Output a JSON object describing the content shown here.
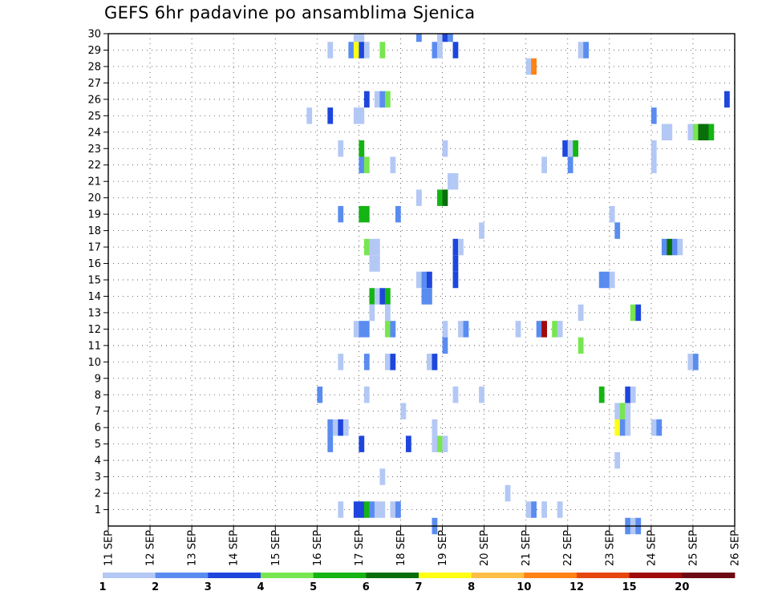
{
  "chart_data": {
    "type": "heatmap",
    "title": "GEFS 6hr padavine po ansamblima Sjenica",
    "xlabel": "",
    "ylabel": "",
    "x_tick_labels": [
      "11 SEP",
      "12 SEP",
      "13 SEP",
      "14 SEP",
      "15 SEP",
      "16 SEP",
      "17 SEP",
      "18 SEP",
      "19 SEP",
      "20 SEP",
      "21 SEP",
      "22 SEP",
      "23 SEP",
      "24 SEP",
      "25 SEP",
      "26 SEP"
    ],
    "y_tick_labels": [
      "1",
      "2",
      "3",
      "4",
      "5",
      "6",
      "7",
      "8",
      "9",
      "10",
      "11",
      "12",
      "13",
      "14",
      "15",
      "16",
      "17",
      "18",
      "19",
      "20",
      "21",
      "22",
      "23",
      "24",
      "25",
      "26",
      "27",
      "28",
      "29",
      "30"
    ],
    "xlim": [
      "11 SEP 00h",
      "26 SEP 00h"
    ],
    "ylim": [
      0,
      30
    ],
    "grid": true,
    "colorbar": {
      "placement": "bottom",
      "levels": [
        "1",
        "2",
        "3",
        "4",
        "5",
        "6",
        "7",
        "8",
        "10",
        "12",
        "15",
        "20"
      ],
      "colors": [
        "#b4c8f5",
        "#5a8cf0",
        "#1e46dc",
        "#78e650",
        "#14b414",
        "#0a6e0a",
        "#ffff14",
        "#ffbe46",
        "#ff8214",
        "#e6460f",
        "#a00a0a",
        "#6e0a14"
      ]
    },
    "cells": [
      {
        "member": 30,
        "t": 47,
        "c": 0
      },
      {
        "member": 30,
        "t": 48,
        "c": 0
      },
      {
        "member": 30,
        "t": 59,
        "c": 1
      },
      {
        "member": 30,
        "t": 63,
        "c": 0
      },
      {
        "member": 30,
        "t": 64,
        "c": 2
      },
      {
        "member": 30,
        "t": 65,
        "c": 1
      },
      {
        "member": 29,
        "t": 42,
        "c": 0
      },
      {
        "member": 29,
        "t": 46,
        "c": 1
      },
      {
        "member": 29,
        "t": 47,
        "c": 6
      },
      {
        "member": 29,
        "t": 48,
        "c": 2
      },
      {
        "member": 29,
        "t": 49,
        "c": 0
      },
      {
        "member": 29,
        "t": 52,
        "c": 3
      },
      {
        "member": 29,
        "t": 62,
        "c": 1
      },
      {
        "member": 29,
        "t": 63,
        "c": 0
      },
      {
        "member": 29,
        "t": 66,
        "c": 2
      },
      {
        "member": 29,
        "t": 90,
        "c": 0
      },
      {
        "member": 29,
        "t": 91,
        "c": 1
      },
      {
        "member": 28,
        "t": 80,
        "c": 0
      },
      {
        "member": 28,
        "t": 81,
        "c": 8
      },
      {
        "member": 26,
        "t": 49,
        "c": 2
      },
      {
        "member": 26,
        "t": 51,
        "c": 0
      },
      {
        "member": 26,
        "t": 52,
        "c": 1
      },
      {
        "member": 26,
        "t": 53,
        "c": 3
      },
      {
        "member": 26,
        "t": 118,
        "c": 2
      },
      {
        "member": 25,
        "t": 38,
        "c": 0
      },
      {
        "member": 25,
        "t": 42,
        "c": 2
      },
      {
        "member": 25,
        "t": 47,
        "c": 0
      },
      {
        "member": 25,
        "t": 48,
        "c": 0
      },
      {
        "member": 25,
        "t": 104,
        "c": 1
      },
      {
        "member": 24,
        "t": 106,
        "c": 0
      },
      {
        "member": 24,
        "t": 107,
        "c": 0
      },
      {
        "member": 24,
        "t": 111,
        "c": 0
      },
      {
        "member": 24,
        "t": 112,
        "c": 3
      },
      {
        "member": 24,
        "t": 113,
        "c": 5
      },
      {
        "member": 24,
        "t": 114,
        "c": 5
      },
      {
        "member": 24,
        "t": 115,
        "c": 4
      },
      {
        "member": 23,
        "t": 44,
        "c": 0
      },
      {
        "member": 23,
        "t": 48,
        "c": 4
      },
      {
        "member": 23,
        "t": 64,
        "c": 0
      },
      {
        "member": 23,
        "t": 87,
        "c": 2
      },
      {
        "member": 23,
        "t": 88,
        "c": 0
      },
      {
        "member": 23,
        "t": 89,
        "c": 4
      },
      {
        "member": 23,
        "t": 104,
        "c": 0
      },
      {
        "member": 22,
        "t": 48,
        "c": 1
      },
      {
        "member": 22,
        "t": 49,
        "c": 3
      },
      {
        "member": 22,
        "t": 54,
        "c": 0
      },
      {
        "member": 22,
        "t": 83,
        "c": 0
      },
      {
        "member": 22,
        "t": 88,
        "c": 1
      },
      {
        "member": 22,
        "t": 104,
        "c": 0
      },
      {
        "member": 21,
        "t": 65,
        "c": 0
      },
      {
        "member": 21,
        "t": 66,
        "c": 0
      },
      {
        "member": 20,
        "t": 59,
        "c": 0
      },
      {
        "member": 20,
        "t": 63,
        "c": 4
      },
      {
        "member": 20,
        "t": 64,
        "c": 5
      },
      {
        "member": 19,
        "t": 44,
        "c": 1
      },
      {
        "member": 19,
        "t": 48,
        "c": 4
      },
      {
        "member": 19,
        "t": 49,
        "c": 4
      },
      {
        "member": 19,
        "t": 55,
        "c": 1
      },
      {
        "member": 19,
        "t": 96,
        "c": 0
      },
      {
        "member": 18,
        "t": 71,
        "c": 0
      },
      {
        "member": 18,
        "t": 97,
        "c": 1
      },
      {
        "member": 17,
        "t": 49,
        "c": 3
      },
      {
        "member": 17,
        "t": 50,
        "c": 0
      },
      {
        "member": 17,
        "t": 51,
        "c": 0
      },
      {
        "member": 17,
        "t": 66,
        "c": 2
      },
      {
        "member": 17,
        "t": 67,
        "c": 0
      },
      {
        "member": 17,
        "t": 106,
        "c": 1
      },
      {
        "member": 17,
        "t": 107,
        "c": 5
      },
      {
        "member": 17,
        "t": 108,
        "c": 1
      },
      {
        "member": 17,
        "t": 109,
        "c": 0
      },
      {
        "member": 16,
        "t": 50,
        "c": 0
      },
      {
        "member": 16,
        "t": 51,
        "c": 0
      },
      {
        "member": 16,
        "t": 66,
        "c": 2
      },
      {
        "member": 15,
        "t": 59,
        "c": 0
      },
      {
        "member": 15,
        "t": 60,
        "c": 1
      },
      {
        "member": 15,
        "t": 61,
        "c": 2
      },
      {
        "member": 15,
        "t": 66,
        "c": 2
      },
      {
        "member": 15,
        "t": 94,
        "c": 1
      },
      {
        "member": 15,
        "t": 95,
        "c": 1
      },
      {
        "member": 15,
        "t": 96,
        "c": 0
      },
      {
        "member": 14,
        "t": 50,
        "c": 4
      },
      {
        "member": 14,
        "t": 51,
        "c": 0
      },
      {
        "member": 14,
        "t": 52,
        "c": 2
      },
      {
        "member": 14,
        "t": 53,
        "c": 4
      },
      {
        "member": 14,
        "t": 60,
        "c": 1
      },
      {
        "member": 14,
        "t": 61,
        "c": 1
      },
      {
        "member": 13,
        "t": 50,
        "c": 0
      },
      {
        "member": 13,
        "t": 53,
        "c": 0
      },
      {
        "member": 13,
        "t": 90,
        "c": 0
      },
      {
        "member": 13,
        "t": 100,
        "c": 3
      },
      {
        "member": 13,
        "t": 101,
        "c": 2
      },
      {
        "member": 12,
        "t": 47,
        "c": 0
      },
      {
        "member": 12,
        "t": 48,
        "c": 1
      },
      {
        "member": 12,
        "t": 49,
        "c": 1
      },
      {
        "member": 12,
        "t": 53,
        "c": 3
      },
      {
        "member": 12,
        "t": 54,
        "c": 1
      },
      {
        "member": 12,
        "t": 64,
        "c": 0
      },
      {
        "member": 12,
        "t": 67,
        "c": 0
      },
      {
        "member": 12,
        "t": 68,
        "c": 1
      },
      {
        "member": 12,
        "t": 78,
        "c": 0
      },
      {
        "member": 12,
        "t": 82,
        "c": 1
      },
      {
        "member": 12,
        "t": 83,
        "c": 10
      },
      {
        "member": 12,
        "t": 85,
        "c": 3
      },
      {
        "member": 12,
        "t": 86,
        "c": 0
      },
      {
        "member": 11,
        "t": 64,
        "c": 1
      },
      {
        "member": 11,
        "t": 90,
        "c": 3
      },
      {
        "member": 10,
        "t": 44,
        "c": 0
      },
      {
        "member": 10,
        "t": 49,
        "c": 1
      },
      {
        "member": 10,
        "t": 53,
        "c": 0
      },
      {
        "member": 10,
        "t": 54,
        "c": 2
      },
      {
        "member": 10,
        "t": 61,
        "c": 0
      },
      {
        "member": 10,
        "t": 62,
        "c": 2
      },
      {
        "member": 10,
        "t": 111,
        "c": 0
      },
      {
        "member": 10,
        "t": 112,
        "c": 1
      },
      {
        "member": 8,
        "t": 40,
        "c": 1
      },
      {
        "member": 8,
        "t": 49,
        "c": 0
      },
      {
        "member": 8,
        "t": 66,
        "c": 0
      },
      {
        "member": 8,
        "t": 71,
        "c": 0
      },
      {
        "member": 8,
        "t": 94,
        "c": 4
      },
      {
        "member": 8,
        "t": 99,
        "c": 2
      },
      {
        "member": 8,
        "t": 100,
        "c": 0
      },
      {
        "member": 7,
        "t": 56,
        "c": 0
      },
      {
        "member": 7,
        "t": 97,
        "c": 0
      },
      {
        "member": 7,
        "t": 98,
        "c": 3
      },
      {
        "member": 7,
        "t": 99,
        "c": 0
      },
      {
        "member": 6,
        "t": 42,
        "c": 1
      },
      {
        "member": 6,
        "t": 43,
        "c": 0
      },
      {
        "member": 6,
        "t": 44,
        "c": 2
      },
      {
        "member": 6,
        "t": 45,
        "c": 0
      },
      {
        "member": 6,
        "t": 62,
        "c": 0
      },
      {
        "member": 6,
        "t": 97,
        "c": 6
      },
      {
        "member": 6,
        "t": 98,
        "c": 1
      },
      {
        "member": 6,
        "t": 99,
        "c": 0
      },
      {
        "member": 6,
        "t": 104,
        "c": 0
      },
      {
        "member": 6,
        "t": 105,
        "c": 1
      },
      {
        "member": 5,
        "t": 42,
        "c": 1
      },
      {
        "member": 5,
        "t": 48,
        "c": 2
      },
      {
        "member": 5,
        "t": 57,
        "c": 2
      },
      {
        "member": 5,
        "t": 62,
        "c": 0
      },
      {
        "member": 5,
        "t": 63,
        "c": 3
      },
      {
        "member": 5,
        "t": 64,
        "c": 0
      },
      {
        "member": 4,
        "t": 97,
        "c": 0
      },
      {
        "member": 3,
        "t": 52,
        "c": 0
      },
      {
        "member": 2,
        "t": 76,
        "c": 0
      },
      {
        "member": 1,
        "t": 44,
        "c": 0
      },
      {
        "member": 1,
        "t": 47,
        "c": 2
      },
      {
        "member": 1,
        "t": 48,
        "c": 2
      },
      {
        "member": 1,
        "t": 49,
        "c": 4
      },
      {
        "member": 1,
        "t": 50,
        "c": 1
      },
      {
        "member": 1,
        "t": 51,
        "c": 0
      },
      {
        "member": 1,
        "t": 52,
        "c": 0
      },
      {
        "member": 1,
        "t": 54,
        "c": 0
      },
      {
        "member": 1,
        "t": 55,
        "c": 1
      },
      {
        "member": 1,
        "t": 80,
        "c": 0
      },
      {
        "member": 1,
        "t": 81,
        "c": 1
      },
      {
        "member": 1,
        "t": 83,
        "c": 0
      },
      {
        "member": 1,
        "t": 86,
        "c": 0
      },
      {
        "member": 0,
        "t": 62,
        "c": 1
      },
      {
        "member": 0,
        "t": 99,
        "c": 1
      },
      {
        "member": 0,
        "t": 100,
        "c": 0
      },
      {
        "member": 0,
        "t": 101,
        "c": 1
      }
    ]
  }
}
